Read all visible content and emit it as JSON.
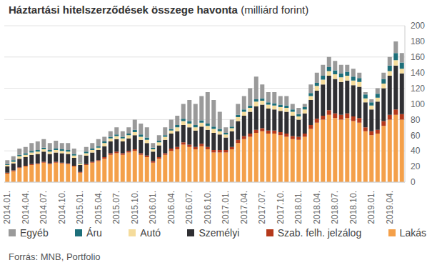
{
  "chart_data": {
    "type": "bar",
    "title": "Háztartási hitelszerződések összege havonta",
    "subtitle": "(milliárd forint)",
    "source": "Forrás: MNB, Portfolio",
    "stacked": true,
    "grid": true,
    "legend": "bottom",
    "ylim": [
      0,
      200
    ],
    "yticks": [
      0,
      20,
      40,
      60,
      80,
      100,
      120,
      140,
      160,
      180,
      200
    ],
    "categories": [
      "2014.01.",
      null,
      null,
      "2014.04.",
      null,
      null,
      "2014.07.",
      null,
      null,
      "2014.10.",
      null,
      null,
      "2015.01.",
      null,
      null,
      "2015.04.",
      null,
      null,
      "2015.07.",
      null,
      null,
      "2015.10.",
      null,
      null,
      "2016.01.",
      null,
      null,
      "2016.04.",
      null,
      null,
      "2016.07.",
      null,
      null,
      "2016.10.",
      null,
      null,
      "2017.01.",
      null,
      null,
      "2017.04.",
      null,
      null,
      "2017.07.",
      null,
      null,
      "2017.10.",
      null,
      null,
      "2018.01.",
      null,
      null,
      "2018.04.",
      null,
      null,
      "2018.07.",
      null,
      null,
      "2018.10.",
      null,
      null,
      "2019.01.",
      null,
      null,
      "2019.04.",
      null,
      null
    ],
    "series": [
      {
        "name": "Egyéb",
        "color": "#9a9a9a",
        "values": [
          5,
          5,
          8,
          8,
          10,
          11,
          11,
          9,
          10,
          8,
          9,
          7,
          10,
          6,
          7,
          9,
          6,
          7,
          9,
          7,
          8,
          13,
          14,
          13,
          6,
          7,
          10,
          12,
          12,
          19,
          27,
          27,
          31,
          40,
          34,
          22,
          7,
          9,
          14,
          17,
          22,
          29,
          18,
          13,
          14,
          11,
          12,
          7,
          8,
          4,
          11,
          13,
          14,
          13,
          12,
          11,
          9,
          10,
          7,
          3,
          4,
          7,
          8,
          11,
          15,
          12
        ]
      },
      {
        "name": "Áru",
        "color": "#1d6f7a",
        "values": [
          1,
          2,
          2,
          2,
          2,
          2,
          2,
          2,
          2,
          2,
          2,
          2,
          1,
          2,
          2,
          2,
          2,
          2,
          2,
          2,
          2,
          3,
          3,
          3,
          2,
          2,
          2,
          2,
          3,
          3,
          3,
          3,
          3,
          3,
          3,
          3,
          2,
          2,
          3,
          3,
          3,
          3,
          3,
          3,
          3,
          3,
          3,
          3,
          3,
          3,
          4,
          4,
          5,
          5,
          5,
          5,
          5,
          5,
          5,
          5,
          4,
          5,
          6,
          7,
          9,
          8
        ]
      },
      {
        "name": "Autó",
        "color": "#f5dc9c",
        "values": [
          2,
          2,
          3,
          3,
          3,
          3,
          3,
          3,
          3,
          3,
          3,
          3,
          2,
          3,
          3,
          3,
          4,
          4,
          4,
          4,
          4,
          4,
          4,
          4,
          3,
          4,
          4,
          4,
          5,
          5,
          5,
          4,
          5,
          5,
          5,
          4,
          4,
          4,
          5,
          5,
          5,
          6,
          5,
          5,
          5,
          5,
          5,
          5,
          4,
          5,
          5,
          6,
          6,
          6,
          6,
          6,
          6,
          6,
          6,
          5,
          5,
          5,
          6,
          6,
          7,
          6
        ]
      },
      {
        "name": "Személyi",
        "color": "#2f2f33",
        "values": [
          8,
          9,
          11,
          11,
          12,
          12,
          13,
          12,
          12,
          12,
          12,
          10,
          9,
          11,
          12,
          13,
          14,
          15,
          16,
          15,
          16,
          18,
          17,
          16,
          12,
          15,
          17,
          19,
          20,
          22,
          22,
          21,
          22,
          22,
          22,
          20,
          16,
          20,
          24,
          26,
          28,
          30,
          30,
          28,
          27,
          27,
          28,
          26,
          22,
          26,
          32,
          36,
          40,
          44,
          44,
          42,
          42,
          40,
          40,
          32,
          28,
          36,
          42,
          50,
          56,
          52
        ]
      },
      {
        "name": "Szab. felh. jelzálog",
        "color": "#b5391b",
        "values": [
          1,
          1,
          1,
          1,
          1,
          1,
          1,
          1,
          1,
          1,
          1,
          1,
          1,
          1,
          1,
          1,
          2,
          2,
          2,
          2,
          2,
          2,
          2,
          2,
          2,
          2,
          2,
          3,
          3,
          3,
          3,
          3,
          3,
          3,
          3,
          3,
          3,
          3,
          4,
          4,
          4,
          4,
          4,
          4,
          4,
          4,
          4,
          4,
          4,
          4,
          5,
          5,
          5,
          6,
          6,
          6,
          6,
          6,
          6,
          5,
          5,
          5,
          6,
          6,
          7,
          7
        ]
      },
      {
        "name": "Lakás",
        "color": "#f4a04a",
        "values": [
          11,
          14,
          18,
          20,
          22,
          23,
          25,
          23,
          25,
          24,
          23,
          20,
          12,
          22,
          25,
          27,
          30,
          35,
          37,
          35,
          38,
          40,
          35,
          32,
          25,
          30,
          35,
          40,
          42,
          48,
          45,
          42,
          46,
          42,
          38,
          38,
          38,
          42,
          50,
          55,
          58,
          63,
          65,
          62,
          62,
          60,
          58,
          55,
          54,
          58,
          68,
          76,
          80,
          86,
          82,
          80,
          82,
          78,
          76,
          65,
          60,
          62,
          72,
          80,
          86,
          80
        ]
      }
    ]
  }
}
